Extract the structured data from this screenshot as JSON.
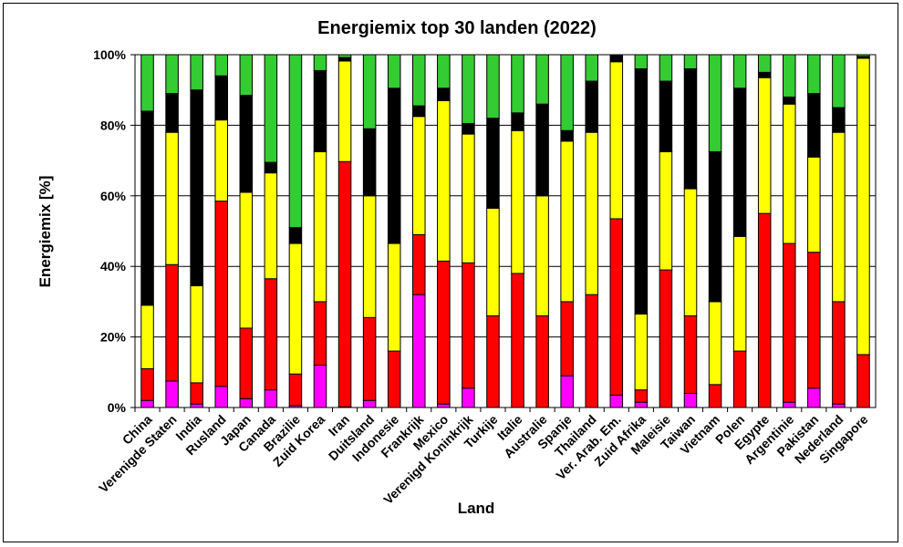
{
  "chart_data": {
    "type": "bar",
    "stacked": true,
    "title": "Energiemix top 30 landen (2022)",
    "xlabel": "Land",
    "ylabel": "Energiemix [%]",
    "ylim": [
      0,
      100
    ],
    "yticks": [
      "0%",
      "20%",
      "40%",
      "60%",
      "80%",
      "100%"
    ],
    "grid": true,
    "legend": "none",
    "categories": [
      "China",
      "Verenigde Staten",
      "India",
      "Rusland",
      "Japan",
      "Canada",
      "Brazilie",
      "Zuid Korea",
      "Iran",
      "Duitsland",
      "Indonesie",
      "Frankrijk",
      "Mexico",
      "Verenigd Koninkrijk",
      "Turkije",
      "Italie",
      "Australie",
      "Spanje",
      "Thailand",
      "Ver. Arab. Em.",
      "Zuid Afrika",
      "Maleisie",
      "Taiwan",
      "Vietnam",
      "Polen",
      "Egypte",
      "Argentinie",
      "Pakistan",
      "Nederland",
      "Singapore"
    ],
    "series": [
      {
        "color": "#ff00ff",
        "values": [
          2,
          7.5,
          1,
          6,
          2.5,
          5,
          0.5,
          12,
          0.2,
          2,
          0,
          32,
          1,
          5.5,
          0,
          0,
          0,
          9,
          0,
          3.5,
          1.5,
          0,
          4,
          0,
          0,
          0,
          1.5,
          5.5,
          1,
          0
        ]
      },
      {
        "color": "#ff0000",
        "values": [
          9,
          33,
          6,
          52.5,
          20,
          31.5,
          9,
          18,
          69.5,
          23.5,
          16,
          17,
          40.5,
          35.5,
          26,
          38,
          26,
          21,
          32,
          50,
          3.5,
          39,
          22,
          6.5,
          16,
          55,
          45,
          38.5,
          29,
          15
        ]
      },
      {
        "color": "#ffff00",
        "values": [
          18,
          37.5,
          27.5,
          23,
          38.5,
          30,
          37,
          42.5,
          28.5,
          34.5,
          30.5,
          33.5,
          45.5,
          36.5,
          30.5,
          40.5,
          34,
          45.5,
          46,
          44.5,
          21.5,
          33.5,
          36,
          23.5,
          32.5,
          38.5,
          39.5,
          27,
          48,
          84
        ]
      },
      {
        "color": "#000000",
        "values": [
          55,
          11,
          55.5,
          12.5,
          27.5,
          3,
          4.5,
          23,
          1,
          19,
          44,
          3,
          3.5,
          3,
          25.5,
          5,
          26,
          3,
          14.5,
          2,
          69.5,
          20,
          34,
          42.5,
          42,
          1.5,
          2,
          18,
          7,
          0.5
        ]
      },
      {
        "color": "#33cc33",
        "values": [
          16,
          11,
          10,
          6,
          11.5,
          30.5,
          49,
          4.5,
          0.8,
          21,
          9.5,
          14.5,
          9.5,
          19.5,
          18,
          16.5,
          14,
          21.5,
          7.5,
          0,
          4,
          7.5,
          4,
          27.5,
          9.5,
          5,
          12,
          11,
          15,
          0.5
        ]
      }
    ]
  }
}
